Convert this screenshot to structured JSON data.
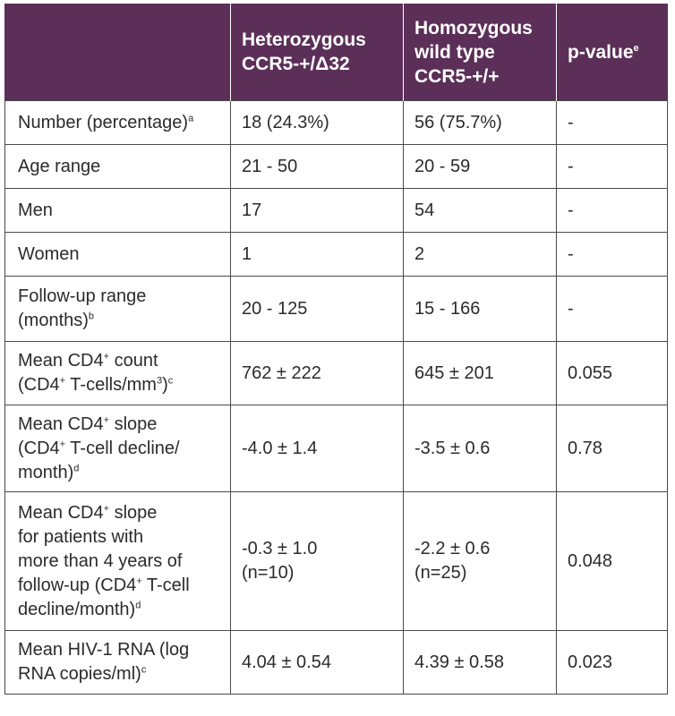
{
  "table": {
    "headers": {
      "col0": "",
      "col1_line1": "Heterozygous",
      "col1_line2": "CCR5-+/Δ32",
      "col2_line1": "Homozygous",
      "col2_line2": "wild type",
      "col2_line3": "CCR5-+/+",
      "col3": "p-value",
      "col3_sup": "e"
    },
    "rows": [
      {
        "label": "Number (percentage)",
        "label_sup": "a",
        "het": "18 (24.3%)",
        "wt": "56 (75.7%)",
        "p": "-"
      },
      {
        "label": "Age range",
        "het": "21 - 50",
        "wt": "20 - 59",
        "p": "-"
      },
      {
        "label": "Men",
        "het": "17",
        "wt": "54",
        "p": "-"
      },
      {
        "label": "Women",
        "het": "1",
        "wt": "2",
        "p": "-"
      },
      {
        "label_line1": "Follow-up range",
        "label_line2": "(months)",
        "label_sup": "b",
        "het": "20 - 125",
        "wt": "15 - 166",
        "p": "-"
      },
      {
        "label_line1a": "Mean CD4",
        "label_line1_sup": "+",
        "label_line1b": " count",
        "label_line2a": "(CD4",
        "label_line2_sup1": "+",
        "label_line2b": " T-cells/mm",
        "label_line2_sup2": "3",
        "label_line2c": ")",
        "label_line2_sup3": "c",
        "het": "762 ± 222",
        "wt": "645 ± 201",
        "p": "0.055"
      },
      {
        "label_line1a": "Mean CD4",
        "label_line1_sup": "+",
        "label_line1b": " slope",
        "label_line2a": "(CD4",
        "label_line2_sup": "+",
        "label_line2b": " T-cell decline/",
        "label_line3": "month)",
        "label_line3_sup": "d",
        "het": "-4.0 ± 1.4",
        "wt": "-3.5 ± 0.6",
        "p": "0.78"
      },
      {
        "label_line1a": "Mean CD4",
        "label_line1_sup": "+",
        "label_line1b": " slope",
        "label_line2": "for patients with",
        "label_line3": "more than 4 years of",
        "label_line4a": "follow-up (CD4",
        "label_line4_sup": "+",
        "label_line4b": " T-cell",
        "label_line5": "decline/month)",
        "label_line5_sup": "d",
        "het_line1": "-0.3 ± 1.0",
        "het_line2": "(n=10)",
        "wt_line1": "-2.2 ± 0.6",
        "wt_line2": "(n=25)",
        "p": "0.048"
      },
      {
        "label_line1": "Mean HIV-1 RNA (log",
        "label_line2": "RNA copies/ml)",
        "label_sup": "c",
        "het": "4.04 ± 0.54",
        "wt": "4.39 ± 0.58",
        "p": "0.023"
      }
    ]
  },
  "colors": {
    "header_bg": "#5b2f58",
    "header_text": "#ffffff",
    "border": "#4a4a4a",
    "body_text": "#2b2b2b"
  }
}
